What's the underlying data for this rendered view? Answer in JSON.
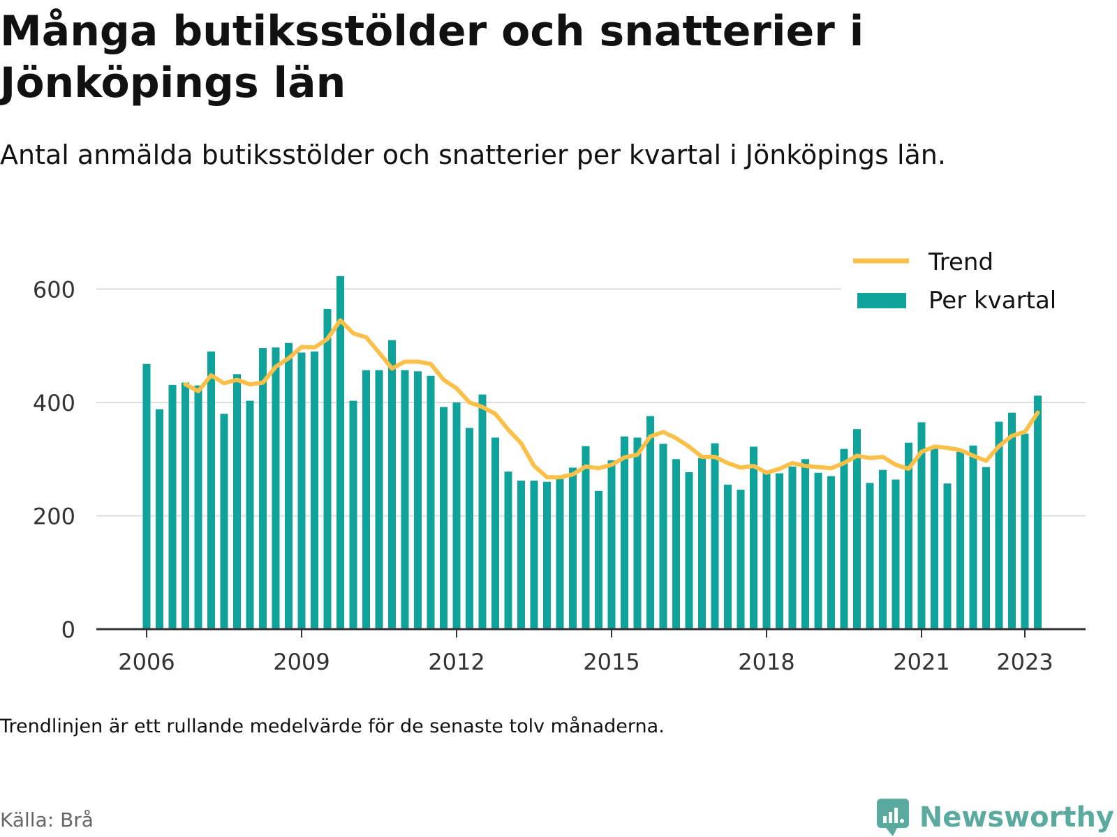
{
  "title": "Många butiksstölder och snatterier i Jönköpings län",
  "subtitle": "Antal anmälda butiksstölder och snatterier per kvartal i Jönköpings län.",
  "note": "Trendlinjen är ett rullande medelvärde för de senaste tolv månaderna.",
  "source": "Källa: Brå",
  "brand": {
    "name": "Newsworthy",
    "icon": "newsworthy-logo-icon"
  },
  "colors": {
    "bars": "#0fa39b",
    "trend": "#fbc04a",
    "grid": "#dddddd",
    "axis": "#333333",
    "brand": "#5aaa9f"
  },
  "chart_data": {
    "type": "bar",
    "title": "Många butiksstölder och snatterier i Jönköpings län",
    "xlabel": "",
    "ylabel": "",
    "ylim": [
      0,
      650
    ],
    "y_ticks": [
      0,
      200,
      400,
      600
    ],
    "x_ticks": [
      "2006",
      "2009",
      "2012",
      "2015",
      "2018",
      "2021",
      "2023"
    ],
    "grid": true,
    "legend": {
      "position": "top-right",
      "entries": [
        "Trend",
        "Per kvartal"
      ]
    },
    "start": "2006 Q1",
    "series": [
      {
        "name": "Per kvartal",
        "type": "bar",
        "values": [
          468,
          388,
          431,
          435,
          430,
          490,
          380,
          450,
          403,
          496,
          497,
          505,
          488,
          490,
          565,
          623,
          403,
          457,
          457,
          510,
          457,
          455,
          447,
          392,
          400,
          355,
          414,
          338,
          278,
          262,
          262,
          260,
          265,
          285,
          323,
          244,
          298,
          340,
          338,
          376,
          327,
          300,
          277,
          302,
          328,
          255,
          246,
          322,
          277,
          275,
          287,
          300,
          276,
          270,
          318,
          353,
          258,
          281,
          264,
          329,
          365,
          322,
          257,
          313,
          324,
          286,
          366,
          382,
          345,
          412
        ]
      },
      {
        "name": "Trend",
        "type": "line",
        "values": [
          null,
          null,
          null,
          432,
          420,
          448,
          434,
          440,
          432,
          435,
          463,
          478,
          498,
          497,
          512,
          545,
          522,
          515,
          488,
          460,
          472,
          472,
          468,
          440,
          425,
          400,
          392,
          380,
          352,
          328,
          288,
          268,
          268,
          273,
          287,
          284,
          290,
          303,
          308,
          340,
          348,
          337,
          322,
          304,
          304,
          293,
          285,
          288,
          276,
          283,
          293,
          288,
          286,
          284,
          293,
          306,
          302,
          304,
          290,
          283,
          313,
          322,
          320,
          316,
          306,
          297,
          323,
          341,
          348,
          382
        ]
      }
    ]
  }
}
